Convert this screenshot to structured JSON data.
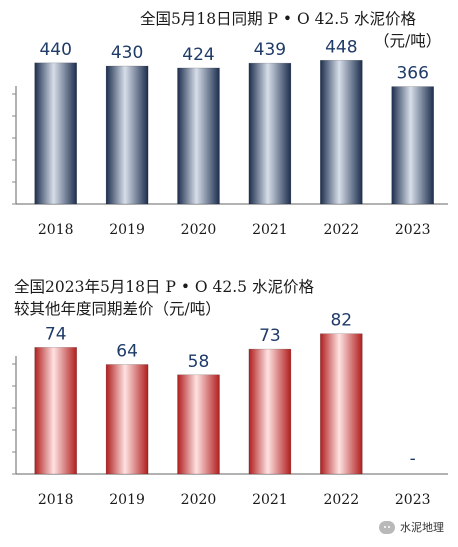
{
  "watermark": {
    "text": "水泥地理",
    "icon": "wechat-icon"
  },
  "colors": {
    "blue_dark": "#1c2e4e",
    "blue_light": "#d7dee9",
    "red_dark": "#b01e1e",
    "red_light": "#ffe2e2",
    "label_blue": "#1f3b68"
  },
  "chart_data": [
    {
      "type": "bar",
      "title": "全国5月18日同期 P • O 42.5 水泥价格",
      "subtitle": "（元/吨）",
      "categories": [
        "2018",
        "2019",
        "2020",
        "2021",
        "2022",
        "2023"
      ],
      "values": [
        440,
        430,
        424,
        439,
        448,
        366
      ],
      "value_labels": [
        "440",
        "430",
        "424",
        "439",
        "448",
        "366"
      ],
      "ylim": [
        0,
        480
      ],
      "grid": false
    },
    {
      "type": "bar",
      "title": "全国2023年5月18日 P • O 42.5 水泥价格",
      "subtitle": "较其他年度同期差价（元/吨）",
      "categories": [
        "2018",
        "2019",
        "2020",
        "2021",
        "2022",
        "2023"
      ],
      "values": [
        74,
        64,
        58,
        73,
        82,
        null
      ],
      "value_labels": [
        "74",
        "64",
        "58",
        "73",
        "82",
        "-"
      ],
      "ylim": [
        0,
        90
      ],
      "grid": false
    }
  ]
}
